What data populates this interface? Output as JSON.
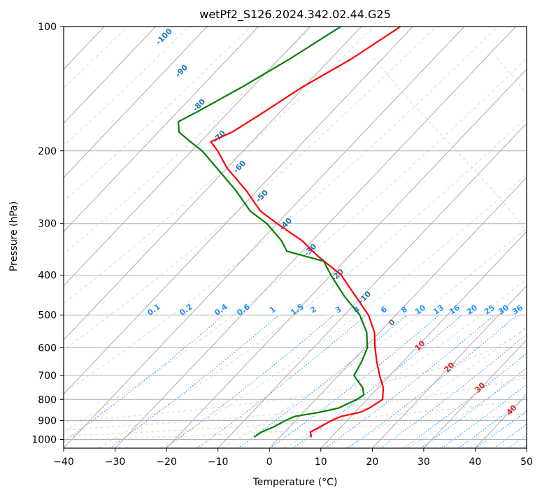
{
  "chart_data": {
    "type": "skewt",
    "title": "wetPf2_S126.2024.342.02.44.G25",
    "xlabel": "Temperature (°C)",
    "ylabel": "Pressure (hPa)",
    "xlim": [
      -40,
      50
    ],
    "ylim": [
      1050,
      100
    ],
    "xticks": [
      -40,
      -30,
      -20,
      -10,
      0,
      10,
      20,
      30,
      40,
      50
    ],
    "yticks": [
      100,
      200,
      300,
      400,
      500,
      600,
      700,
      800,
      900,
      1000
    ],
    "isotherm_guides": [
      -110,
      -100,
      -90,
      -80,
      -70,
      -60,
      -50,
      -40,
      -30,
      -20,
      -10,
      0,
      10,
      20,
      30,
      40,
      50
    ],
    "dry_adiabat_labels": [
      -100,
      -90,
      -80,
      -70,
      -60,
      -50,
      -40,
      -30,
      -20,
      -10
    ],
    "moist_adiabat_labels": [
      0,
      10,
      20,
      30,
      40
    ],
    "mixing_ratio_labels": [
      "0.1",
      "0.2",
      "0.4",
      "0.6",
      "1",
      "1.5",
      "2",
      "3",
      "4",
      "6",
      "8",
      "10",
      "13",
      "16",
      "20",
      "25",
      "30",
      "36"
    ],
    "series": [
      {
        "name": "",
        "color": "#ff0000",
        "points": [
          {
            "p": 100,
            "t": -52.4
          },
          {
            "p": 120,
            "t": -56.0
          },
          {
            "p": 140,
            "t": -60.3
          },
          {
            "p": 160,
            "t": -63.0
          },
          {
            "p": 180,
            "t": -65.6
          },
          {
            "p": 190,
            "t": -68.0
          },
          {
            "p": 200,
            "t": -65.0
          },
          {
            "p": 220,
            "t": -60.0
          },
          {
            "p": 250,
            "t": -52.0
          },
          {
            "p": 280,
            "t": -45.5
          },
          {
            "p": 300,
            "t": -40.0
          },
          {
            "p": 330,
            "t": -32.0
          },
          {
            "p": 360,
            "t": -26.0
          },
          {
            "p": 400,
            "t": -18.0
          },
          {
            "p": 450,
            "t": -11.3
          },
          {
            "p": 500,
            "t": -5.3
          },
          {
            "p": 550,
            "t": -1.0
          },
          {
            "p": 600,
            "t": 2.0
          },
          {
            "p": 650,
            "t": 5.0
          },
          {
            "p": 700,
            "t": 8.0
          },
          {
            "p": 750,
            "t": 11.0
          },
          {
            "p": 800,
            "t": 13.0
          },
          {
            "p": 840,
            "t": 12.0
          },
          {
            "p": 860,
            "t": 11.0
          },
          {
            "p": 880,
            "t": 8.0
          },
          {
            "p": 900,
            "t": 7.0
          },
          {
            "p": 930,
            "t": 6.0
          },
          {
            "p": 960,
            "t": 5.0
          },
          {
            "p": 985,
            "t": 6.0
          }
        ]
      },
      {
        "name": "",
        "color": "#008000",
        "points": [
          {
            "p": 100,
            "t": -64.0
          },
          {
            "p": 120,
            "t": -68.0
          },
          {
            "p": 140,
            "t": -72.0
          },
          {
            "p": 160,
            "t": -76.0
          },
          {
            "p": 170,
            "t": -78.0
          },
          {
            "p": 180,
            "t": -76.0
          },
          {
            "p": 190,
            "t": -72.0
          },
          {
            "p": 200,
            "t": -68.0
          },
          {
            "p": 220,
            "t": -62.0
          },
          {
            "p": 250,
            "t": -54.0
          },
          {
            "p": 280,
            "t": -47.5
          },
          {
            "p": 300,
            "t": -42.0
          },
          {
            "p": 330,
            "t": -36.0
          },
          {
            "p": 350,
            "t": -33.0
          },
          {
            "p": 370,
            "t": -24.0
          },
          {
            "p": 400,
            "t": -20.0
          },
          {
            "p": 450,
            "t": -13.5
          },
          {
            "p": 500,
            "t": -7.0
          },
          {
            "p": 550,
            "t": -2.5
          },
          {
            "p": 600,
            "t": 0.5
          },
          {
            "p": 650,
            "t": 2.0
          },
          {
            "p": 700,
            "t": 3.0
          },
          {
            "p": 750,
            "t": 7.0
          },
          {
            "p": 780,
            "t": 8.5
          },
          {
            "p": 800,
            "t": 8.0
          },
          {
            "p": 840,
            "t": 6.0
          },
          {
            "p": 860,
            "t": 3.0
          },
          {
            "p": 880,
            "t": -1.0
          },
          {
            "p": 900,
            "t": -2.0
          },
          {
            "p": 930,
            "t": -3.0
          },
          {
            "p": 960,
            "t": -4.5
          },
          {
            "p": 985,
            "t": -5.0
          }
        ]
      }
    ]
  }
}
